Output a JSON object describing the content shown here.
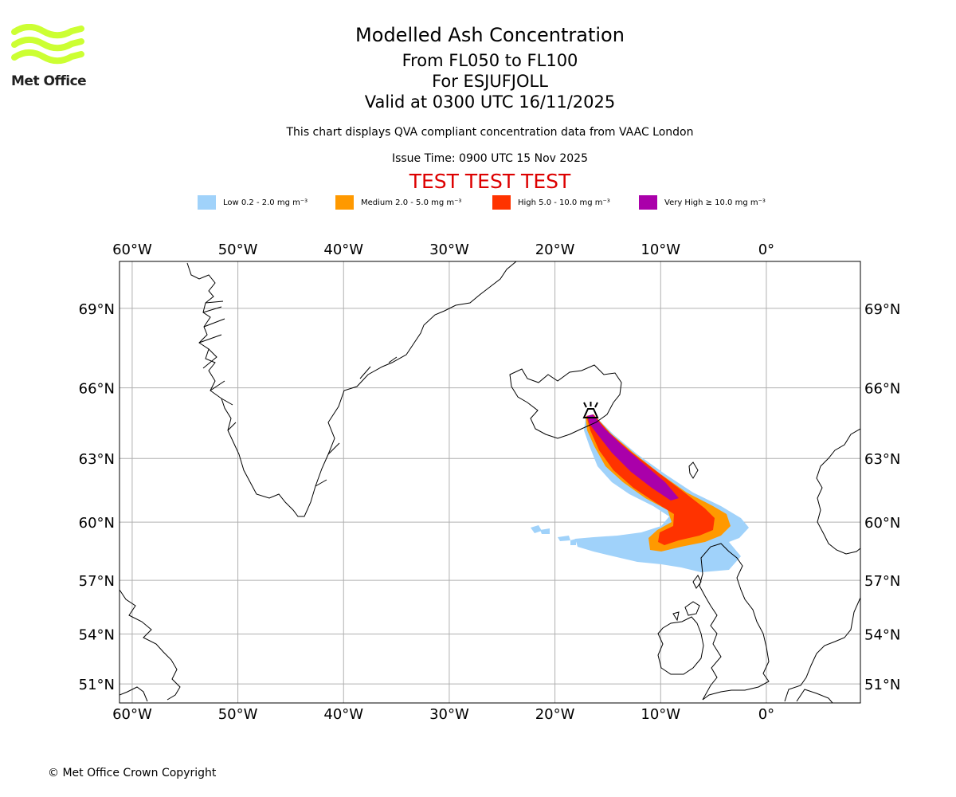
{
  "logo": {
    "name": "Met Office",
    "colors": {
      "waves": "#ccff33",
      "text": "#222222"
    }
  },
  "title": {
    "main": "Modelled Ash Concentration",
    "levels": "From FL050 to FL100",
    "volcano": "For ESJUFJOLL",
    "validity": "Valid at 0300 UTC 16/11/2025",
    "description": "This chart displays QVA compliant concentration data from VAAC London",
    "issue_time": "Issue Time: 0900 UTC 15 Nov 2025",
    "test_banner": "TEST TEST TEST",
    "test_color": "#dd0000"
  },
  "legend": [
    {
      "label": "Low 0.2 - 2.0 mg m⁻³",
      "color": "#a0d2fa"
    },
    {
      "label": "Medium 2.0 - 5.0 mg m⁻³",
      "color": "#ff9900"
    },
    {
      "label": "High 5.0 - 10.0 mg m⁻³",
      "color": "#ff3300"
    },
    {
      "label": "Very High ≥ 10.0 mg m⁻³",
      "color": "#aa00aa"
    }
  ],
  "map": {
    "lon_range": [
      -61.2,
      8.9
    ],
    "lat_range": [
      49.8,
      70.6
    ],
    "lon_ticks": [
      {
        "value": -60,
        "label": "60°W"
      },
      {
        "value": -50,
        "label": "50°W"
      },
      {
        "value": -40,
        "label": "40°W"
      },
      {
        "value": -30,
        "label": "30°W"
      },
      {
        "value": -20,
        "label": "20°W"
      },
      {
        "value": -10,
        "label": "10°W"
      },
      {
        "value": 0,
        "label": "0°"
      }
    ],
    "lat_ticks": [
      {
        "value": 69,
        "label": "69°N"
      },
      {
        "value": 66,
        "label": "66°N"
      },
      {
        "value": 63,
        "label": "63°N"
      },
      {
        "value": 60,
        "label": "60°N"
      },
      {
        "value": 57,
        "label": "57°N"
      },
      {
        "value": 54,
        "label": "54°N"
      },
      {
        "value": 51,
        "label": "51°N"
      }
    ],
    "volcano_name": "ESJUFJOLL",
    "volcano_location": {
      "lon": -16.6,
      "lat": 64.3
    },
    "colors": {
      "grid": "#b0b0b0",
      "coast": "#000000"
    }
  },
  "footer": {
    "copyright": "© Met Office Crown Copyright"
  }
}
